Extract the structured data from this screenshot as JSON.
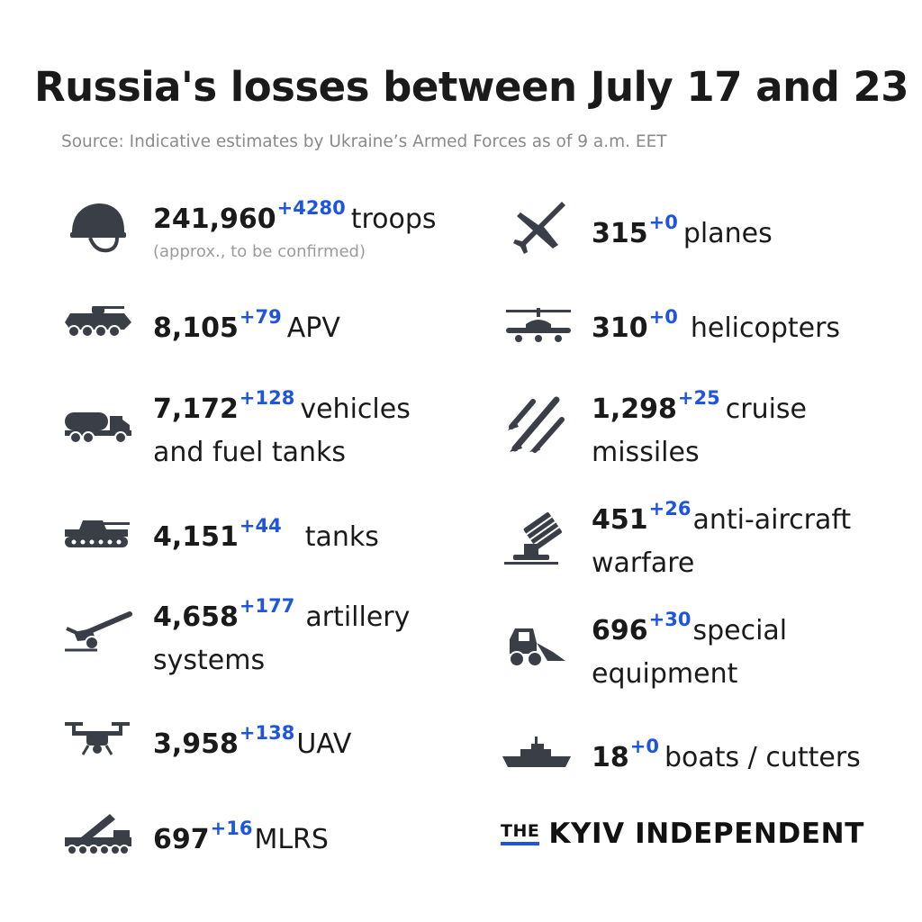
{
  "header": {
    "title": "Russia's losses between July 17 and 23",
    "source": "Source: Indicative estimates by Ukraine’s Armed Forces as of 9 a.m. EET"
  },
  "stats": {
    "troops": {
      "value": "241,960",
      "delta": "+4280",
      "label": "troops",
      "note": "(approx., to be confirmed)",
      "icon": "helmet-icon"
    },
    "apv": {
      "value": "8,105",
      "delta": "+79",
      "label": "APV",
      "icon": "apv-icon"
    },
    "vehicles": {
      "value": "7,172",
      "delta": "+128",
      "label": "vehicles",
      "label2": "and fuel tanks",
      "icon": "fuel-truck-icon"
    },
    "tanks": {
      "value": "4,151",
      "delta": "+44",
      "label": "tanks",
      "icon": "tank-icon"
    },
    "artillery": {
      "value": "4,658",
      "delta": "+177",
      "label": "artillery",
      "label2": "systems",
      "icon": "artillery-icon"
    },
    "uav": {
      "value": "3,958",
      "delta": "+138",
      "label": "UAV",
      "icon": "drone-icon"
    },
    "mlrs": {
      "value": "697",
      "delta": "+16",
      "label": "MLRS",
      "icon": "mlrs-icon"
    },
    "planes": {
      "value": "315",
      "delta": "+0",
      "label": "planes",
      "icon": "plane-icon"
    },
    "helicopters": {
      "value": "310",
      "delta": "+0",
      "label": "helicopters",
      "icon": "helicopter-icon"
    },
    "cruise": {
      "value": "1,298",
      "delta": "+25",
      "label": "cruise",
      "label2": "missiles",
      "icon": "missile-icon"
    },
    "antiair": {
      "value": "451",
      "delta": "+26",
      "label": "anti-aircraft",
      "label2": "warfare",
      "icon": "anti-aircraft-icon"
    },
    "special": {
      "value": "696",
      "delta": "+30",
      "label": "special",
      "label2": "equipment",
      "icon": "loader-icon"
    },
    "boats": {
      "value": "18",
      "delta": "+0",
      "label": "boats / cutters",
      "icon": "ship-icon"
    }
  },
  "brand": {
    "the": "THE",
    "name": "KYIV INDEPENDENT"
  },
  "colors": {
    "accent": "#1e55e0",
    "icon": "#3a3f47",
    "text": "#1a1a1a",
    "muted": "#8a8a8a"
  }
}
